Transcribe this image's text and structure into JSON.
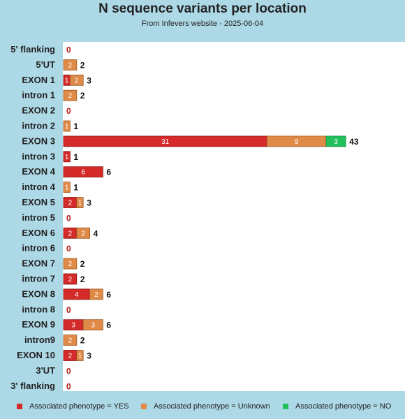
{
  "chart_data": {
    "type": "bar",
    "orientation": "horizontal",
    "stacked": true,
    "title": "N sequence variants per location",
    "subtitle": "From Infevers website - 2025-06-04",
    "categories": [
      "5' flanking",
      "5'UT",
      "EXON 1",
      "intron 1",
      "EXON 2",
      "intron 2",
      "EXON 3",
      "intron 3",
      "EXON 4",
      "intron 4",
      "EXON 5",
      "intron 5",
      "EXON 6",
      "intron 6",
      "EXON 7",
      "intron 7",
      "EXON 8",
      "intron 8",
      "EXON 9",
      "intron9",
      "EXON 10",
      "3'UT",
      "3' flanking"
    ],
    "series": [
      {
        "name": "Associated phenotype = YES",
        "color": "#d42a2a",
        "values": [
          0,
          0,
          1,
          0,
          0,
          0,
          31,
          1,
          6,
          0,
          2,
          0,
          2,
          0,
          0,
          2,
          4,
          0,
          3,
          0,
          2,
          0,
          0
        ]
      },
      {
        "name": "Associated phenotype = Unknown",
        "color": "#e08a48",
        "values": [
          0,
          2,
          2,
          2,
          0,
          1,
          9,
          0,
          0,
          1,
          1,
          0,
          2,
          0,
          2,
          0,
          2,
          0,
          3,
          2,
          1,
          0,
          0
        ]
      },
      {
        "name": "Associated phenotype = NO",
        "color": "#22c05a",
        "values": [
          0,
          0,
          0,
          0,
          0,
          0,
          3,
          0,
          0,
          0,
          0,
          0,
          0,
          0,
          0,
          0,
          0,
          0,
          0,
          0,
          0,
          0,
          0
        ]
      }
    ],
    "totals": [
      0,
      2,
      3,
      2,
      0,
      1,
      43,
      1,
      6,
      1,
      3,
      0,
      4,
      0,
      2,
      2,
      6,
      0,
      6,
      2,
      3,
      0,
      0
    ],
    "xlim": [
      0,
      43
    ],
    "grid": false,
    "legend_position": "bottom"
  }
}
